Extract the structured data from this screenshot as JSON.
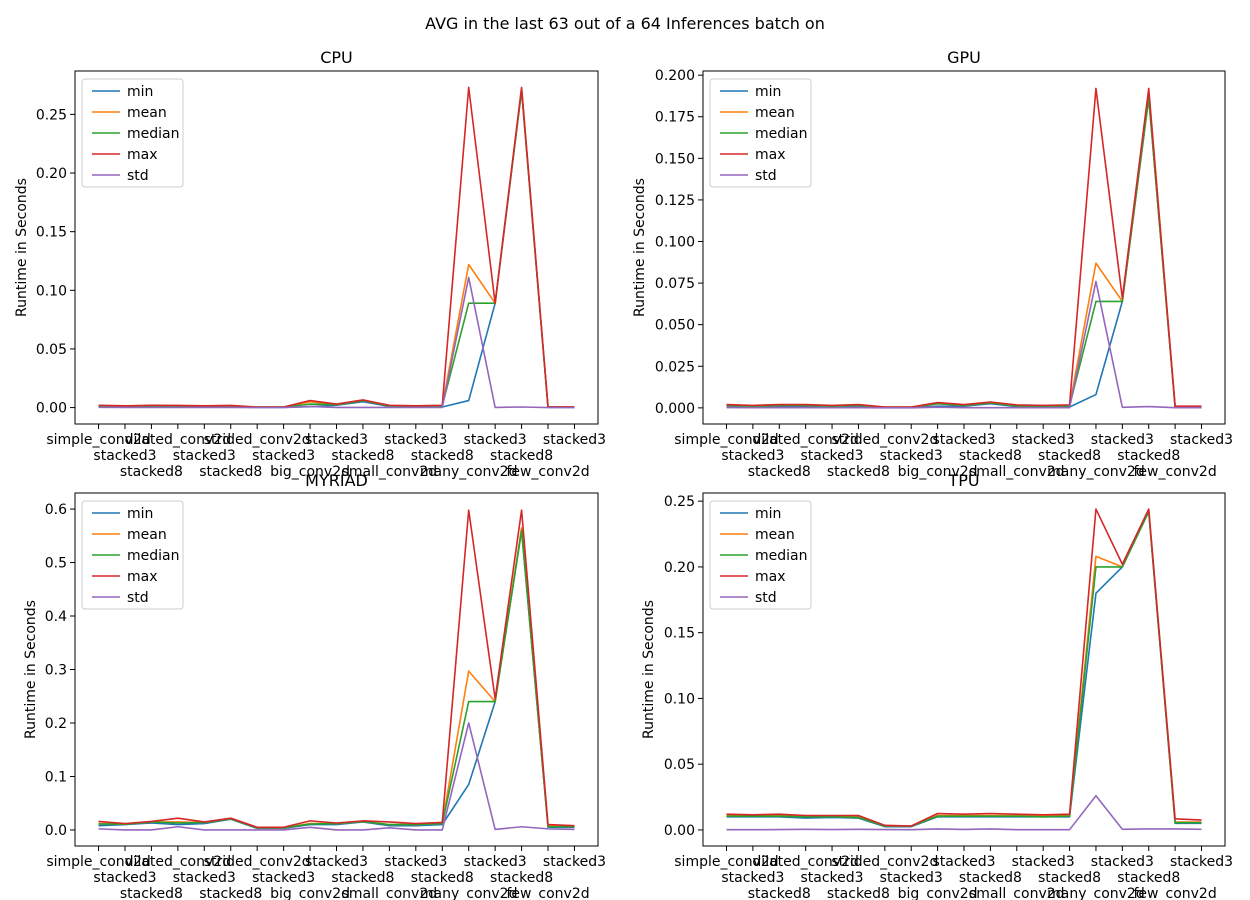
{
  "figure": {
    "suptitle": "AVG in the last 63 out of a 64 Inferences batch on"
  },
  "chart_data": [
    {
      "type": "line",
      "title": "CPU",
      "xlabel": "",
      "ylabel": "Runtime in Seconds",
      "categories": [
        "simple_conv2d",
        "stacked3",
        "stacked8",
        "dilated_conv2d",
        "stacked3",
        "stacked8",
        "strided_conv2d",
        "stacked3",
        "big_conv2d",
        "stacked3",
        "stacked8",
        "small_conv2d",
        "stacked3",
        "stacked8",
        "many_conv2d",
        "stacked3",
        "stacked8",
        "few_conv2d",
        "stacked3"
      ],
      "tick_labels": [
        "simple_conv2d",
        "stacked3\nstacked8",
        "dilated_conv2d",
        "stacked3\nstacked8",
        "strided_conv2d",
        "stacked3",
        "big_conv2d",
        "stacked3\nstacked8",
        "small_conv2d",
        "stacked3\nstacked8",
        "many_conv2d",
        "stacked3\nstacked8",
        "few_conv2d",
        "stacked3"
      ],
      "ylim": [
        -0.014,
        0.287
      ],
      "yticks": [
        0.0,
        0.05,
        0.1,
        0.15,
        0.2,
        0.25
      ],
      "ytick_labels": [
        "0.00",
        "0.05",
        "0.10",
        "0.15",
        "0.20",
        "0.25"
      ],
      "legend": "upper-left",
      "grid": false,
      "series": [
        {
          "name": "min",
          "color": "#1f77b4",
          "values": [
            0.001,
            0.0005,
            0.001,
            0.0008,
            0.0005,
            0.0005,
            0.0002,
            0.0002,
            0.0008,
            0.002,
            0.005,
            0.001,
            0.0005,
            0.0005,
            0.006,
            0.089,
            0.27,
            0.0002,
            0.0002
          ]
        },
        {
          "name": "mean",
          "color": "#ff7f0e",
          "values": [
            0.0015,
            0.001,
            0.0015,
            0.0012,
            0.001,
            0.0012,
            0.0004,
            0.0004,
            0.005,
            0.0025,
            0.006,
            0.0015,
            0.001,
            0.0015,
            0.122,
            0.089,
            0.272,
            0.0004,
            0.0004
          ]
        },
        {
          "name": "median",
          "color": "#2ca02c",
          "values": [
            0.0015,
            0.001,
            0.0015,
            0.0012,
            0.001,
            0.0012,
            0.0004,
            0.0004,
            0.003,
            0.0025,
            0.006,
            0.0015,
            0.001,
            0.0015,
            0.089,
            0.089,
            0.271,
            0.0004,
            0.0004
          ]
        },
        {
          "name": "max",
          "color": "#d62728",
          "values": [
            0.002,
            0.0015,
            0.002,
            0.0018,
            0.0015,
            0.0018,
            0.0005,
            0.0005,
            0.006,
            0.003,
            0.0065,
            0.002,
            0.0015,
            0.002,
            0.273,
            0.089,
            0.273,
            0.0006,
            0.0006
          ]
        },
        {
          "name": "std",
          "color": "#9467bd",
          "values": [
            0.0002,
            0.0001,
            0.0001,
            0.0001,
            0.0001,
            0.0001,
            0.0,
            0.0,
            0.001,
            0.0001,
            0.0001,
            0.0001,
            0.0001,
            0.0001,
            0.111,
            0.0001,
            0.0005,
            0.0,
            0.0
          ]
        }
      ]
    },
    {
      "type": "line",
      "title": "GPU",
      "xlabel": "",
      "ylabel": "Runtime in Seconds",
      "categories": [
        "simple_conv2d",
        "stacked3",
        "stacked8",
        "dilated_conv2d",
        "stacked3",
        "stacked8",
        "strided_conv2d",
        "stacked3",
        "big_conv2d",
        "stacked3",
        "stacked8",
        "small_conv2d",
        "stacked3",
        "stacked8",
        "many_conv2d",
        "stacked3",
        "stacked8",
        "few_conv2d",
        "stacked3"
      ],
      "tick_labels": [
        "simple_conv2d",
        "stacked3\nstacked8",
        "dilated_conv2d",
        "stacked3\nstacked8",
        "strided_conv2d",
        "stacked3",
        "big_conv2d",
        "stacked3\nstacked8",
        "small_conv2d",
        "stacked3\nstacked8",
        "many_conv2d",
        "stacked3\nstacked8",
        "few_conv2d",
        "stacked3"
      ],
      "ylim": [
        -0.0097,
        0.2025
      ],
      "yticks": [
        0.0,
        0.025,
        0.05,
        0.075,
        0.1,
        0.125,
        0.15,
        0.175,
        0.2
      ],
      "ytick_labels": [
        "0.000",
        "0.025",
        "0.050",
        "0.075",
        "0.100",
        "0.125",
        "0.150",
        "0.175",
        "0.200"
      ],
      "legend": "upper-left",
      "grid": false,
      "series": [
        {
          "name": "min",
          "color": "#1f77b4",
          "values": [
            0.001,
            0.0005,
            0.001,
            0.001,
            0.0005,
            0.001,
            0.0002,
            0.0002,
            0.001,
            0.001,
            0.0025,
            0.0008,
            0.0005,
            0.0005,
            0.008,
            0.064,
            0.186,
            0.0004,
            0.0004
          ]
        },
        {
          "name": "mean",
          "color": "#ff7f0e",
          "values": [
            0.0015,
            0.001,
            0.0015,
            0.0015,
            0.001,
            0.0015,
            0.0004,
            0.0004,
            0.0025,
            0.0015,
            0.003,
            0.0012,
            0.001,
            0.0012,
            0.087,
            0.064,
            0.187,
            0.0006,
            0.0006
          ]
        },
        {
          "name": "median",
          "color": "#2ca02c",
          "values": [
            0.0015,
            0.001,
            0.0015,
            0.0015,
            0.001,
            0.0015,
            0.0004,
            0.0004,
            0.0025,
            0.0015,
            0.003,
            0.0012,
            0.001,
            0.0012,
            0.064,
            0.064,
            0.187,
            0.0006,
            0.0006
          ]
        },
        {
          "name": "max",
          "color": "#d62728",
          "values": [
            0.002,
            0.0015,
            0.002,
            0.002,
            0.0015,
            0.002,
            0.0005,
            0.0005,
            0.0032,
            0.002,
            0.0035,
            0.0018,
            0.0015,
            0.0018,
            0.192,
            0.066,
            0.192,
            0.001,
            0.001
          ]
        },
        {
          "name": "std",
          "color": "#9467bd",
          "values": [
            0.0002,
            0.0001,
            0.0001,
            0.0001,
            0.0001,
            0.0001,
            0.0,
            0.0,
            0.0004,
            0.0001,
            0.0001,
            0.0001,
            0.0001,
            0.0001,
            0.076,
            0.0003,
            0.0008,
            0.0001,
            0.0001
          ]
        }
      ]
    },
    {
      "type": "line",
      "title": "MYRIAD",
      "xlabel": "",
      "ylabel": "Runtime in Seconds",
      "categories": [
        "simple_conv2d",
        "stacked3",
        "stacked8",
        "dilated_conv2d",
        "stacked3",
        "stacked8",
        "strided_conv2d",
        "stacked3",
        "big_conv2d",
        "stacked3",
        "stacked8",
        "small_conv2d",
        "stacked3",
        "stacked8",
        "many_conv2d",
        "stacked3",
        "stacked8",
        "few_conv2d",
        "stacked3"
      ],
      "tick_labels": [
        "simple_conv2d",
        "stacked3\nstacked8",
        "dilated_conv2d",
        "stacked3\nstacked8",
        "strided_conv2d",
        "stacked3",
        "big_conv2d",
        "stacked3\nstacked8",
        "small_conv2d",
        "stacked3\nstacked8",
        "many_conv2d",
        "stacked3\nstacked8",
        "few_conv2d",
        "stacked3"
      ],
      "ylim": [
        -0.03,
        0.63
      ],
      "yticks": [
        0.0,
        0.1,
        0.2,
        0.3,
        0.4,
        0.5,
        0.6
      ],
      "ytick_labels": [
        "0.0",
        "0.1",
        "0.2",
        "0.3",
        "0.4",
        "0.5",
        "0.6"
      ],
      "legend": "upper-left",
      "grid": false,
      "series": [
        {
          "name": "min",
          "color": "#1f77b4",
          "values": [
            0.008,
            0.01,
            0.013,
            0.01,
            0.012,
            0.02,
            0.003,
            0.003,
            0.01,
            0.01,
            0.015,
            0.008,
            0.008,
            0.01,
            0.085,
            0.24,
            0.56,
            0.005,
            0.005
          ]
        },
        {
          "name": "mean",
          "color": "#ff7f0e",
          "values": [
            0.012,
            0.011,
            0.015,
            0.015,
            0.014,
            0.021,
            0.004,
            0.004,
            0.012,
            0.012,
            0.016,
            0.01,
            0.01,
            0.012,
            0.297,
            0.24,
            0.565,
            0.007,
            0.006
          ]
        },
        {
          "name": "median",
          "color": "#2ca02c",
          "values": [
            0.011,
            0.011,
            0.015,
            0.013,
            0.014,
            0.021,
            0.004,
            0.004,
            0.011,
            0.012,
            0.016,
            0.01,
            0.01,
            0.012,
            0.24,
            0.24,
            0.56,
            0.006,
            0.006
          ]
        },
        {
          "name": "max",
          "color": "#d62728",
          "values": [
            0.016,
            0.012,
            0.016,
            0.022,
            0.015,
            0.022,
            0.005,
            0.005,
            0.017,
            0.013,
            0.017,
            0.015,
            0.012,
            0.014,
            0.598,
            0.245,
            0.598,
            0.01,
            0.008
          ]
        },
        {
          "name": "std",
          "color": "#9467bd",
          "values": [
            0.002,
            0.0001,
            0.0001,
            0.006,
            0.0001,
            0.0001,
            0.0001,
            0.0001,
            0.005,
            0.0001,
            0.0001,
            0.004,
            0.0001,
            0.0001,
            0.2,
            0.001,
            0.006,
            0.002,
            0.001
          ]
        }
      ]
    },
    {
      "type": "line",
      "title": "TPU",
      "xlabel": "",
      "ylabel": "Runtime in Seconds",
      "categories": [
        "simple_conv2d",
        "stacked3",
        "stacked8",
        "dilated_conv2d",
        "stacked3",
        "stacked8",
        "strided_conv2d",
        "stacked3",
        "big_conv2d",
        "stacked3",
        "stacked8",
        "small_conv2d",
        "stacked3",
        "stacked8",
        "many_conv2d",
        "stacked3",
        "stacked8",
        "few_conv2d",
        "stacked3"
      ],
      "tick_labels": [
        "simple_conv2d",
        "stacked3\nstacked8",
        "dilated_conv2d",
        "stacked3\nstacked8",
        "strided_conv2d",
        "stacked3",
        "big_conv2d",
        "stacked3\nstacked8",
        "small_conv2d",
        "stacked3\nstacked8",
        "many_conv2d",
        "stacked3\nstacked8",
        "few_conv2d",
        "stacked3"
      ],
      "ylim": [
        -0.0122,
        0.2562
      ],
      "yticks": [
        0.0,
        0.05,
        0.1,
        0.15,
        0.2,
        0.25
      ],
      "ytick_labels": [
        "0.00",
        "0.05",
        "0.10",
        "0.15",
        "0.20",
        "0.25"
      ],
      "legend": "upper-left",
      "grid": false,
      "series": [
        {
          "name": "min",
          "color": "#1f77b4",
          "values": [
            0.01,
            0.01,
            0.01,
            0.009,
            0.0095,
            0.009,
            0.0025,
            0.0025,
            0.01,
            0.01,
            0.01,
            0.01,
            0.01,
            0.01,
            0.18,
            0.2,
            0.242,
            0.005,
            0.005
          ]
        },
        {
          "name": "mean",
          "color": "#ff7f0e",
          "values": [
            0.011,
            0.011,
            0.011,
            0.0105,
            0.0105,
            0.01,
            0.003,
            0.003,
            0.011,
            0.011,
            0.011,
            0.011,
            0.0105,
            0.011,
            0.208,
            0.2,
            0.243,
            0.006,
            0.006
          ]
        },
        {
          "name": "median",
          "color": "#2ca02c",
          "values": [
            0.0105,
            0.0105,
            0.0105,
            0.01,
            0.01,
            0.0095,
            0.003,
            0.003,
            0.0105,
            0.0105,
            0.0105,
            0.0105,
            0.01,
            0.0105,
            0.2,
            0.2,
            0.242,
            0.0055,
            0.0055
          ]
        },
        {
          "name": "max",
          "color": "#d62728",
          "values": [
            0.012,
            0.0115,
            0.012,
            0.011,
            0.011,
            0.011,
            0.0035,
            0.003,
            0.0125,
            0.012,
            0.0125,
            0.012,
            0.0115,
            0.012,
            0.244,
            0.202,
            0.244,
            0.0085,
            0.0075
          ]
        },
        {
          "name": "std",
          "color": "#9467bd",
          "values": [
            0.0002,
            0.0002,
            0.0003,
            0.0005,
            0.0003,
            0.0005,
            0.0003,
            0.0002,
            0.0008,
            0.0004,
            0.0008,
            0.0002,
            0.0002,
            0.0002,
            0.026,
            0.0005,
            0.0008,
            0.0008,
            0.0005
          ]
        }
      ]
    }
  ]
}
